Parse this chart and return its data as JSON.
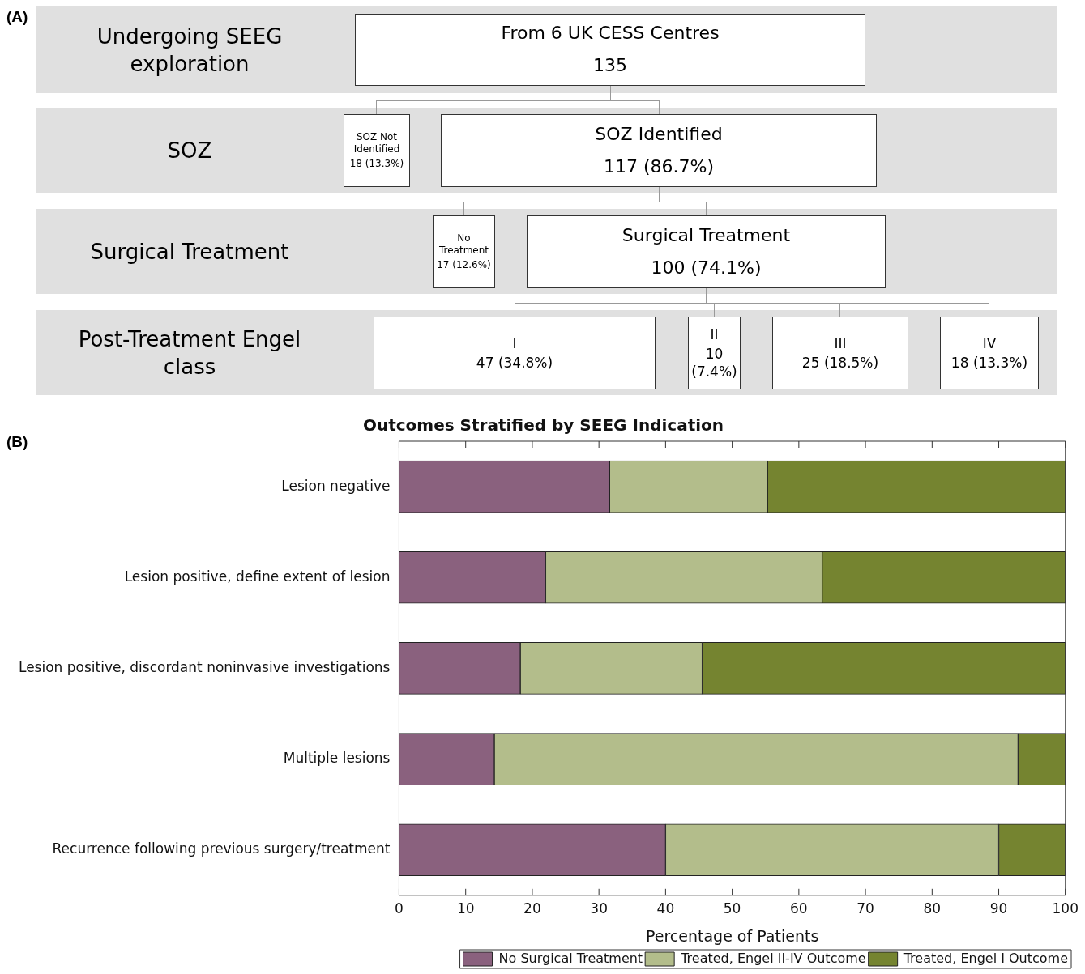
{
  "chart_data": [
    {
      "type": "other",
      "title": "(A)",
      "annotations": [
        "Undergoing SEEG exploration",
        "SOZ",
        "Surgical Treatment",
        "Post-Treatment Engel class",
        "From 6 UK CESS Centres",
        "135",
        "SOZ Not Identified",
        "18 (13.3%)",
        "SOZ Identified",
        "117 (86.7%)",
        "No Treatment",
        "17 (12.6%)",
        "Surgical Treatment",
        "100 (74.1%)",
        "I",
        "47 (34.8%)",
        "II",
        "10 (7.4%)",
        "III",
        "25 (18.5%)",
        "IV",
        "18 (13.3%)"
      ]
    },
    {
      "type": "bar",
      "orientation": "horizontal",
      "stacked": true,
      "title": "Outcomes Stratified by SEEG Indication",
      "xlabel": "Percentage of Patients",
      "annotations": [
        "(B)"
      ],
      "categories": [
        "Lesion negative",
        "Lesion positive, define extent of lesion",
        "Lesion positive, discordant noninvasive investigations",
        "Multiple lesions",
        "Recurrence following previous surgery/treatment"
      ],
      "series": [
        {
          "name": "No Surgical Treatment",
          "color": "#8a617e",
          "values": [
            31.6,
            22.0,
            18.2,
            14.3,
            40.0
          ]
        },
        {
          "name": "Treated, Engel II-IV Outcome",
          "color": "#b3bd8b",
          "values": [
            23.7,
            41.5,
            27.3,
            78.6,
            50.0
          ]
        },
        {
          "name": "Treated, Engel I Outcome",
          "color": "#758430",
          "values": [
            44.7,
            36.5,
            54.5,
            7.1,
            10.0
          ]
        }
      ],
      "xlim": [
        0,
        100
      ],
      "xticks": [
        0,
        10,
        20,
        30,
        40,
        50,
        60,
        70,
        80,
        90,
        100
      ],
      "legend": "bottom right"
    }
  ]
}
